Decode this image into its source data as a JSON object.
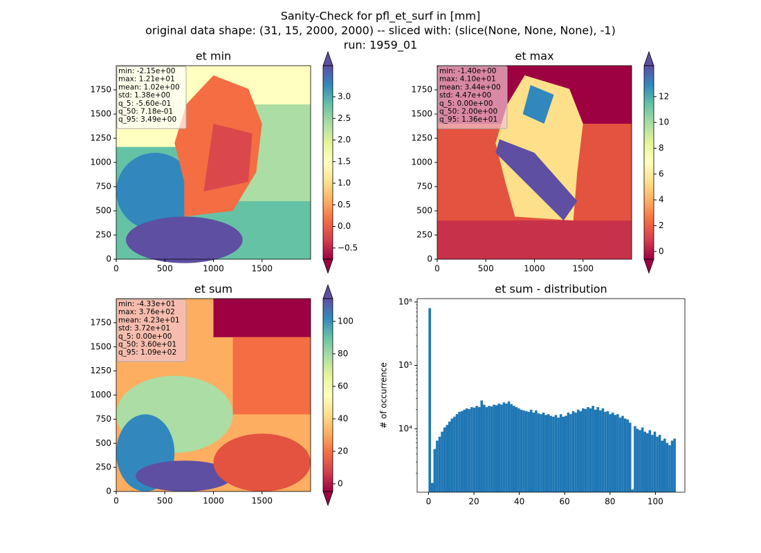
{
  "suptitle": [
    "Sanity-Check for pfl_et_surf in [mm]",
    "original data shape: (31, 15, 2000, 2000) -- sliced with: (slice(None, None, None), -1)",
    "run: 1959_01"
  ],
  "chart_data": [
    {
      "type": "heatmap",
      "title": "et min",
      "xlim": [
        0,
        2000
      ],
      "ylim": [
        0,
        2000
      ],
      "xticks": [
        0,
        500,
        1000,
        1500
      ],
      "yticks": [
        0,
        250,
        500,
        750,
        1000,
        1250,
        1500,
        1750
      ],
      "stats": [
        "min: -2.15e+00",
        "max: 1.21e+01",
        "mean: 1.02e+00",
        "std: 1.38e+00",
        "q_5: -5.60e-01",
        "q_50: 7.18e-01",
        "q_95: 3.49e+00"
      ],
      "colorbar": {
        "lim": [
          -0.76,
          3.72
        ],
        "ticks": [
          -0.5,
          0.0,
          0.5,
          1.0,
          1.5,
          2.0,
          2.5,
          3.0
        ],
        "tick_labels": [
          "−0.5",
          "0.0",
          "0.5",
          "1.0",
          "1.5",
          "2.0",
          "2.5",
          "3.0"
        ]
      }
    },
    {
      "type": "heatmap",
      "title": "et max",
      "xlim": [
        0,
        2000
      ],
      "ylim": [
        0,
        2000
      ],
      "xticks": [
        0,
        500,
        1000,
        1500
      ],
      "yticks": [
        0,
        250,
        500,
        750,
        1000,
        1250,
        1500,
        1750
      ],
      "stats": [
        "min: -1.40e+00",
        "max: 4.10e+01",
        "mean: 3.44e+00",
        "std: 4.47e+00",
        "q_5: 0.00e+00",
        "q_50: 2.00e+00",
        "q_95: 1.36e+01"
      ],
      "colorbar": {
        "lim": [
          -0.6,
          14.4
        ],
        "ticks": [
          0,
          2,
          4,
          6,
          8,
          10,
          12
        ]
      }
    },
    {
      "type": "heatmap",
      "title": "et sum",
      "xlim": [
        0,
        2000
      ],
      "ylim": [
        0,
        2000
      ],
      "xticks": [
        0,
        500,
        1000,
        1500
      ],
      "yticks": [
        0,
        250,
        500,
        750,
        1000,
        1250,
        1500,
        1750
      ],
      "stats": [
        "min: -4.33e+01",
        "max: 3.76e+02",
        "mean: 4.23e+01",
        "std: 3.72e+01",
        "q_5: 0.00e+00",
        "q_50: 3.60e+01",
        "q_95: 1.09e+02"
      ],
      "colorbar": {
        "lim": [
          -4.7,
          114
        ],
        "ticks": [
          0,
          20,
          40,
          60,
          80,
          100
        ]
      }
    },
    {
      "type": "histogram",
      "title": "et sum - distribution",
      "ylabel": "# of occurrence",
      "color": "#1f77b4",
      "log_y": true,
      "xlim": [
        -5,
        113
      ],
      "ylim": [
        1000,
        1130000
      ],
      "xticks": [
        0,
        20,
        40,
        60,
        80,
        100
      ],
      "yticks": [
        {
          "value": 10000,
          "label": "10⁴"
        },
        {
          "value": 100000,
          "label": "10⁵"
        },
        {
          "value": 1000000,
          "label": "10⁶"
        }
      ],
      "bins": [
        0,
        1.09,
        2.18,
        3.27,
        4.36,
        5.45,
        6.54,
        7.63,
        8.72,
        9.81,
        10.9,
        11.99,
        13.08,
        14.17,
        15.26,
        16.35,
        17.44,
        18.53,
        19.62,
        20.71,
        21.8,
        22.89,
        23.98,
        25.07,
        26.16,
        27.25,
        28.34,
        29.43,
        30.52,
        31.61,
        32.7,
        33.79,
        34.88,
        35.97,
        37.06,
        38.15,
        39.24,
        40.33,
        41.42,
        42.51,
        43.6,
        44.69,
        45.78,
        46.87,
        47.96,
        49.05,
        50.14,
        51.23,
        52.32,
        53.41,
        54.5,
        55.59,
        56.68,
        57.77,
        58.86,
        59.95,
        61.04,
        62.13,
        63.22,
        64.31,
        65.4,
        66.49,
        67.58,
        68.67,
        69.76,
        70.85,
        71.94,
        73.03,
        74.12,
        75.21,
        76.3,
        77.39,
        78.48,
        79.57,
        80.66,
        81.75,
        82.84,
        83.93,
        85.02,
        86.11,
        87.2,
        88.29,
        89.38,
        90.47,
        91.56,
        92.65,
        93.74,
        94.83,
        95.92,
        97.01,
        98.1,
        99.19,
        100.28,
        101.37,
        102.46,
        103.55,
        104.64,
        105.73,
        106.82,
        107.91,
        109
      ],
      "values": [
        800000,
        1400,
        4800,
        6500,
        7500,
        9000,
        10500,
        11500,
        13000,
        14500,
        15500,
        17000,
        18500,
        19000,
        20000,
        21000,
        20500,
        22000,
        21500,
        23000,
        22000,
        28000,
        24000,
        22000,
        23000,
        22500,
        24000,
        23500,
        25000,
        24000,
        26000,
        25000,
        27000,
        24500,
        23000,
        22000,
        21000,
        20000,
        19500,
        19000,
        18500,
        20000,
        18000,
        19500,
        17500,
        17000,
        18000,
        16500,
        17000,
        16000,
        15500,
        16500,
        15000,
        17000,
        15500,
        16000,
        18000,
        17000,
        19000,
        18000,
        20000,
        19000,
        21000,
        20500,
        22000,
        21000,
        23000,
        20000,
        22000,
        19500,
        21000,
        18500,
        19000,
        17000,
        18000,
        16500,
        17000,
        15000,
        16000,
        14500,
        14000,
        12500,
        1100,
        11000,
        10000,
        9500,
        10500,
        9000,
        8500,
        9500,
        8000,
        9000,
        7500,
        8000,
        6500,
        7000,
        6000,
        5500,
        6500,
        7000
      ]
    }
  ]
}
